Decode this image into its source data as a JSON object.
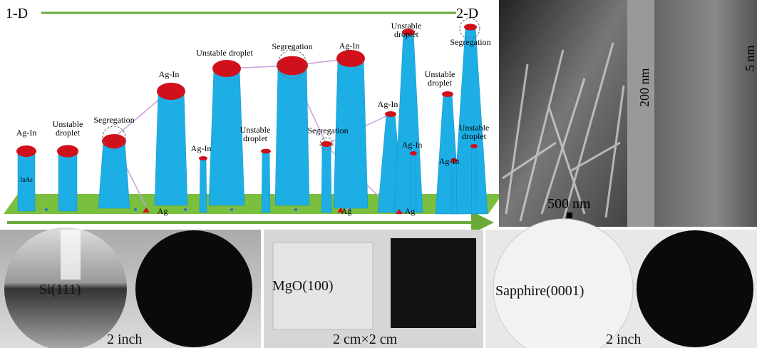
{
  "schematic": {
    "start_label": "1-D",
    "end_label": "2-D",
    "labels": [
      "Ag-In",
      "InAs",
      [
        "Unstable",
        "droplet"
      ],
      "Segregation",
      "Ag-In",
      "Ag-In",
      "Ag",
      "Unstable droplet",
      [
        "Unstable",
        "droplet"
      ],
      "Segregation",
      "Segregation",
      "Ag-In",
      "Ag",
      "Ag-In",
      [
        "Unstable",
        "droplet"
      ],
      "Ag-In",
      "Ag",
      [
        "Unstable",
        "droplet"
      ],
      "Segregation",
      [
        "Unstable",
        "droplet"
      ],
      "Ag-In"
    ]
  },
  "micrographs": {
    "sem_scale": "500 nm",
    "tem_scale": "200 nm",
    "hrtem_scale": "5 nm"
  },
  "photos": [
    {
      "substrate": "Si(111)",
      "size": "2 inch"
    },
    {
      "substrate": "MgO(100)",
      "size": "2 cm×2 cm"
    },
    {
      "substrate": "Sapphire(0001)",
      "size": "2 inch"
    }
  ]
}
